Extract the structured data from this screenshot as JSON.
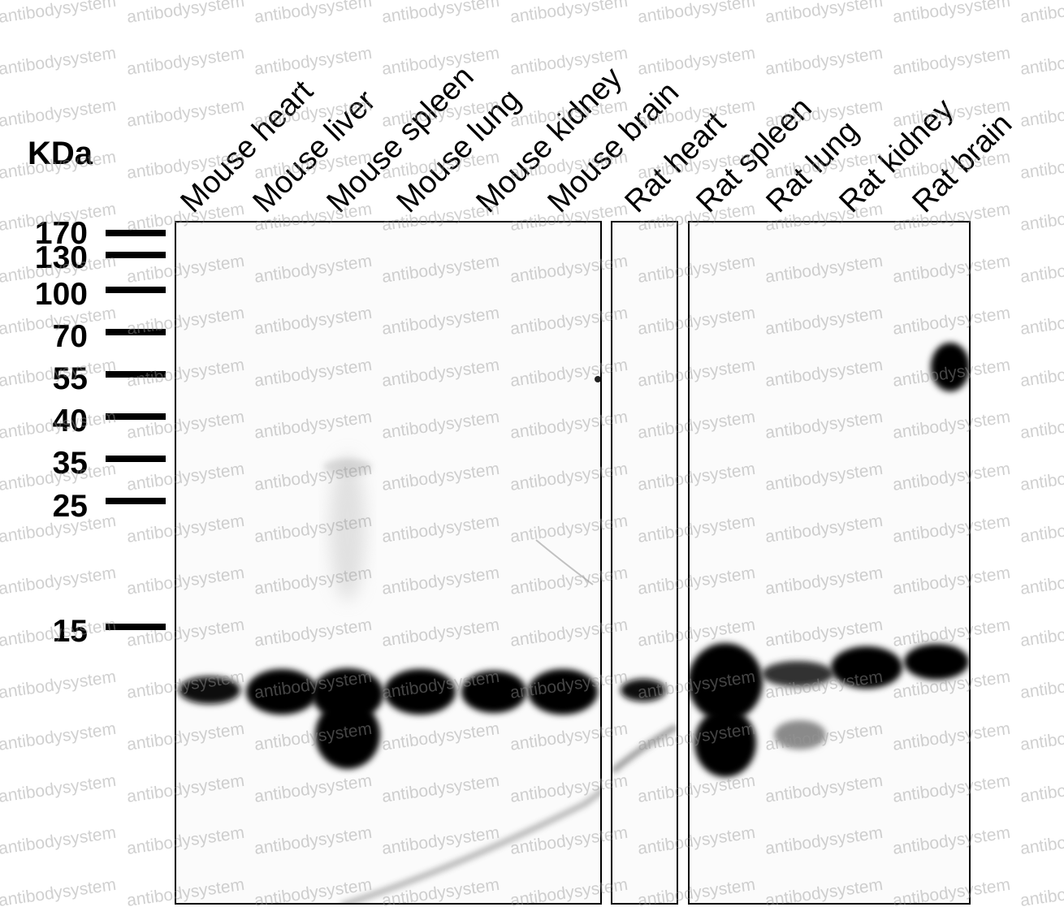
{
  "unit_label": "KDa",
  "watermark_text": "antibodysystem",
  "markers": [
    {
      "label": "170",
      "kda": 170
    },
    {
      "label": "130",
      "kda": 130
    },
    {
      "label": "100",
      "kda": 100
    },
    {
      "label": "70",
      "kda": 70
    },
    {
      "label": "55",
      "kda": 55
    },
    {
      "label": "40",
      "kda": 40
    },
    {
      "label": "35",
      "kda": 35
    },
    {
      "label": "25",
      "kda": 25
    },
    {
      "label": "15",
      "kda": 15
    }
  ],
  "lanes": [
    {
      "label": "Mouse heart",
      "panel": 1
    },
    {
      "label": "Mouse liver",
      "panel": 1
    },
    {
      "label": "Mouse spleen",
      "panel": 1
    },
    {
      "label": "Mouse lung",
      "panel": 1
    },
    {
      "label": "Mouse kidney",
      "panel": 1
    },
    {
      "label": "Mouse brain",
      "panel": 1
    },
    {
      "label": "Rat heart",
      "panel": 2
    },
    {
      "label": "Rat spleen",
      "panel": 3
    },
    {
      "label": "Rat lung",
      "panel": 3
    },
    {
      "label": "Rat kidney",
      "panel": 3
    },
    {
      "label": "Rat brain",
      "panel": 3
    }
  ],
  "colors": {
    "band": "#000000",
    "membrane": "#fbfbfb",
    "watermark": "#969696"
  }
}
